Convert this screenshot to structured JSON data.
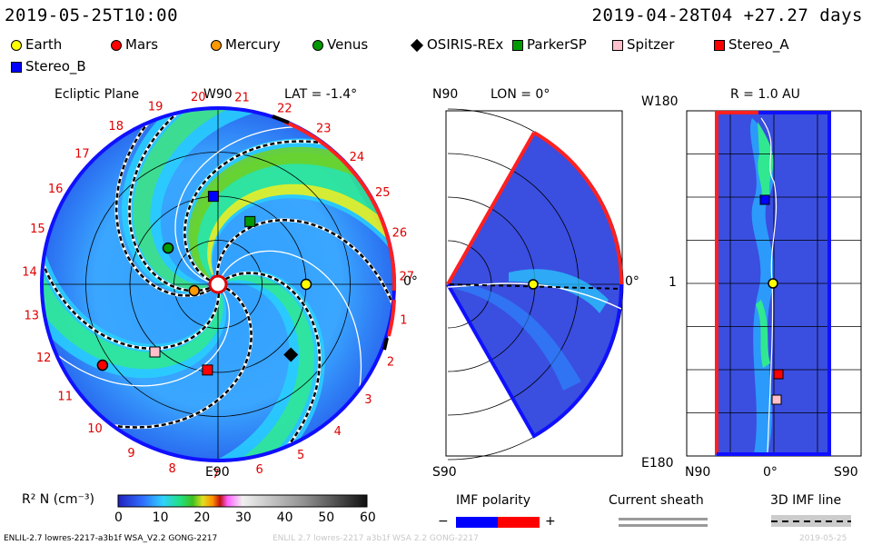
{
  "header": {
    "date_left": "2019-05-25T10:00",
    "date_right": "2019-04-28T04 +27.27 days"
  },
  "legend": [
    {
      "name": "Earth",
      "color": "#ffff00",
      "shape": "circle"
    },
    {
      "name": "Mars",
      "color": "#ff0000",
      "shape": "circle"
    },
    {
      "name": "Mercury",
      "color": "#ff9900",
      "shape": "circle"
    },
    {
      "name": "Venus",
      "color": "#009900",
      "shape": "circle"
    },
    {
      "name": "OSIRIS-REx",
      "color": "#000000",
      "shape": "diamond"
    },
    {
      "name": "ParkerSP",
      "color": "#009900",
      "shape": "square"
    },
    {
      "name": "Spitzer",
      "color": "#ffc0cb",
      "shape": "square"
    },
    {
      "name": "Stereo_A",
      "color": "#ff0000",
      "shape": "square"
    },
    {
      "name": "Stereo_B",
      "color": "#0000ff",
      "shape": "square"
    }
  ],
  "chart_data": [
    {
      "type": "heatmap",
      "title": "Ecliptic Plane",
      "lat_label": "LAT = -1.4°",
      "top_label": "W90",
      "bottom_label": "E90",
      "right_label": "0°",
      "rotation_ticks": [
        "20",
        "21",
        "22",
        "23",
        "24",
        "25",
        "26",
        "27",
        "1",
        "2",
        "3",
        "4",
        "5",
        "6",
        "7",
        "8",
        "9",
        "10",
        "11",
        "12",
        "13",
        "14",
        "15",
        "16",
        "17",
        "18",
        "19"
      ],
      "bodies": [
        {
          "name": "Earth",
          "r_au": 1.0,
          "lon_deg": 0
        },
        {
          "name": "Mars",
          "r_au": 1.6,
          "lon_deg": -145
        },
        {
          "name": "Mercury",
          "r_au": 0.28,
          "lon_deg": -165
        },
        {
          "name": "Venus",
          "r_au": 0.7,
          "lon_deg": 144
        },
        {
          "name": "OSIRIS-REx",
          "r_au": 1.15,
          "lon_deg": -44
        },
        {
          "name": "ParkerSP",
          "r_au": 0.8,
          "lon_deg": 63
        },
        {
          "name": "Spitzer",
          "r_au": 1.05,
          "lon_deg": -133
        },
        {
          "name": "Stereo_A",
          "r_au": 0.98,
          "lon_deg": -97
        },
        {
          "name": "Stereo_B",
          "r_au": 1.0,
          "lon_deg": 93
        }
      ]
    },
    {
      "type": "heatmap",
      "title": "LON = 0°",
      "top_label": "N90",
      "bottom_label": "S90",
      "right_label": "0°"
    },
    {
      "type": "heatmap",
      "title": "R = 1.0 AU",
      "top_label": "W180",
      "bottom_label": "E180",
      "mid_label": "1",
      "x_labels": [
        "N90",
        "0°",
        "S90"
      ]
    },
    {
      "type": "colorbar",
      "label": "R² N (cm⁻³)",
      "ticks": [
        "0",
        "10",
        "20",
        "30",
        "40",
        "50",
        "60"
      ],
      "range": [
        0,
        60
      ]
    }
  ],
  "keys": {
    "imf_polarity": "IMF polarity",
    "minus": "−",
    "plus": "+",
    "current_sheath": "Current sheath",
    "imf_line": "3D IMF line"
  },
  "footer": {
    "model": "ENLIL-2.7 lowres-2217-a3b1f WSA_V2.2 GONG-2217",
    "run": "ENLIL 2.7 lowres-2217 a3b1f WSA 2.2 GONG-2217",
    "date": "2019-05-25"
  }
}
